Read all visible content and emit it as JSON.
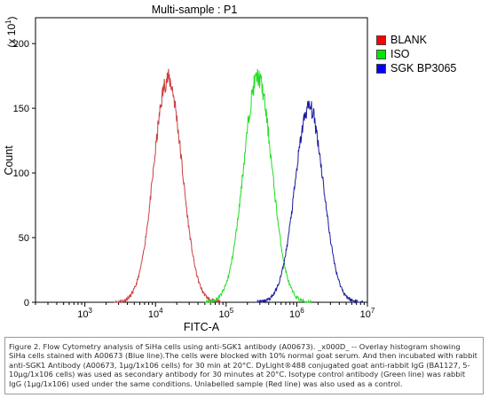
{
  "chart_data": {
    "type": "line",
    "title": "Multi-sample : P1",
    "xlabel": "FITC-A",
    "ylabel": "Count",
    "y_multiplier_label": "(x 10^1)",
    "x_scale": "log",
    "xlim": [
      200,
      10000000
    ],
    "ylim": [
      0,
      220
    ],
    "x_ticks": [
      1000,
      10000,
      100000,
      1000000,
      10000000
    ],
    "x_tick_labels": [
      {
        "base": "10",
        "exp": "3"
      },
      {
        "base": "10",
        "exp": "4"
      },
      {
        "base": "10",
        "exp": "5"
      },
      {
        "base": "10",
        "exp": "6"
      },
      {
        "base": "10",
        "exp": "7"
      }
    ],
    "y_ticks": [
      0,
      50,
      100,
      150,
      200
    ],
    "y_tick_labels": [
      "0",
      "50",
      "100",
      "150",
      "200"
    ],
    "grid": false,
    "legend_position": "right",
    "series": [
      {
        "name": "BLANK",
        "color": "#ff0000",
        "line_color": "#c84040",
        "peak_x": 15000,
        "peak_y": 173
      },
      {
        "name": "ISO",
        "color": "#00e600",
        "line_color": "#22dd22",
        "peak_x": 280000,
        "peak_y": 174
      },
      {
        "name": "SGK BP3065",
        "color": "#0000ff",
        "line_color": "#1a1a9a",
        "peak_x": 1500000,
        "peak_y": 151
      }
    ]
  },
  "caption": "Figure 2. Flow Cytometry analysis of SiHa cells using anti-SGK1 antibody (A00673). _x000D_ -- Overlay histogram showing SiHa cells stained with A00673 (Blue line).The cells were blocked with 10% normal goat serum. And then incubated with rabbit anti-SGK1 Antibody (A00673, 1μg/1x106 cells) for 30 min at 20°C. DyLight®488 conjugated goat anti-rabbit IgG (BA1127, 5-10μg/1x106 cells) was used as secondary antibody for 30 minutes at 20°C. Isotype control antibody (Green line) was rabbit IgG (1μg/1x106) used under the same conditions. Unlabelled sample (Red line) was also used as a control."
}
